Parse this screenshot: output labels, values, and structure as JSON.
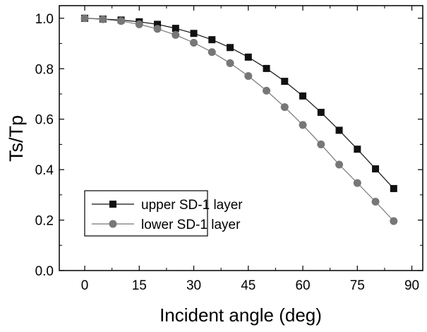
{
  "chart_data": {
    "type": "line",
    "xlabel": "Incident angle (deg)",
    "ylabel": "Ts/Tp",
    "xlim": [
      -7,
      93
    ],
    "ylim": [
      0.0,
      1.05
    ],
    "xticks": [
      0,
      15,
      30,
      45,
      60,
      75,
      90
    ],
    "xtick_labels": [
      "0",
      "15",
      "30",
      "45",
      "60",
      "75",
      "90"
    ],
    "yticks": [
      0.0,
      0.2,
      0.4,
      0.6,
      0.8,
      1.0
    ],
    "ytick_labels": [
      "0.0",
      "0.2",
      "0.4",
      "0.6",
      "0.8",
      "1.0"
    ],
    "grid": false,
    "legend_position": "lower-left",
    "x": [
      0,
      5,
      10,
      15,
      20,
      25,
      30,
      35,
      40,
      45,
      50,
      55,
      60,
      65,
      70,
      75,
      80,
      85
    ],
    "series": [
      {
        "name": "upper SD-1 layer",
        "marker": "square",
        "color": "#111111",
        "values": [
          1.0,
          0.997,
          0.993,
          0.986,
          0.976,
          0.96,
          0.94,
          0.915,
          0.884,
          0.846,
          0.801,
          0.75,
          0.692,
          0.627,
          0.556,
          0.481,
          0.403,
          0.325
        ]
      },
      {
        "name": "lower SD-1 layer",
        "marker": "circle",
        "color": "#777777",
        "values": [
          1.0,
          0.996,
          0.989,
          0.976,
          0.958,
          0.934,
          0.903,
          0.866,
          0.822,
          0.771,
          0.713,
          0.648,
          0.577,
          0.5,
          0.42,
          0.347,
          0.273,
          0.196
        ]
      }
    ]
  }
}
